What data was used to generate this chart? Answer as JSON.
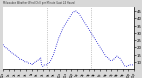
{
  "title": "Milwaukee Weather Wind Chill per Minute (Last 24 Hours)",
  "bg_color": "#d8d8d8",
  "plot_bg_color": "#ffffff",
  "line_color": "#0000cc",
  "ylim": [
    5,
    48
  ],
  "xlim": [
    0,
    143
  ],
  "yticks": [
    10,
    15,
    20,
    25,
    30,
    35,
    40,
    45
  ],
  "vlines": [
    48,
    96
  ],
  "vline_color": "#999999",
  "y_values": [
    22,
    21,
    20,
    20,
    19,
    19,
    18,
    18,
    17,
    17,
    16,
    16,
    15,
    15,
    14,
    14,
    13,
    13,
    12,
    12,
    12,
    11,
    11,
    11,
    10,
    10,
    10,
    10,
    9,
    9,
    9,
    9,
    8,
    9,
    9,
    10,
    10,
    11,
    11,
    12,
    12,
    13,
    8,
    7,
    7,
    8,
    8,
    8,
    8,
    9,
    9,
    10,
    11,
    12,
    14,
    15,
    17,
    19,
    21,
    23,
    25,
    27,
    28,
    30,
    31,
    33,
    34,
    35,
    36,
    37,
    38,
    39,
    40,
    41,
    42,
    43,
    44,
    44,
    45,
    45,
    45,
    44,
    44,
    43,
    42,
    41,
    40,
    39,
    38,
    37,
    36,
    35,
    34,
    33,
    32,
    31,
    30,
    29,
    28,
    27,
    26,
    25,
    24,
    23,
    22,
    21,
    20,
    19,
    18,
    17,
    16,
    15,
    14,
    13,
    13,
    12,
    12,
    11,
    11,
    11,
    12,
    12,
    13,
    13,
    14,
    14,
    13,
    13,
    12,
    11,
    10,
    9,
    8,
    7,
    7,
    7,
    7,
    8,
    8,
    8,
    8,
    8,
    8,
    8
  ]
}
